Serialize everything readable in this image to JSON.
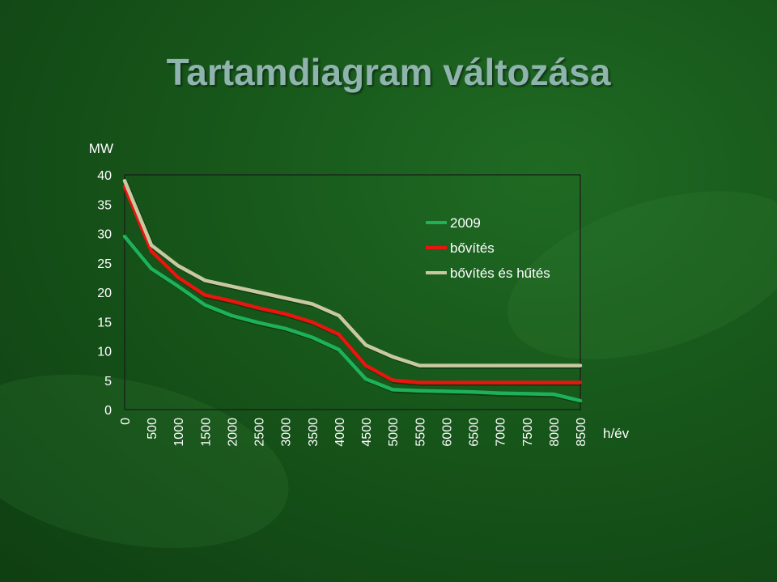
{
  "slide": {
    "title": "Tartamdiagram változása",
    "background_color": "#17561a",
    "title_color": "#8fb3ad"
  },
  "chart_data": {
    "type": "line",
    "title": "",
    "ylabel": "MW",
    "xlabel": "h/év",
    "ylim": [
      0,
      40
    ],
    "xlim": [
      0,
      8500
    ],
    "y_ticks": [
      0,
      5,
      10,
      15,
      20,
      25,
      30,
      35,
      40
    ],
    "x_ticks": [
      0,
      500,
      1000,
      1500,
      2000,
      2500,
      3000,
      3500,
      4000,
      4500,
      5000,
      5500,
      6000,
      6500,
      7000,
      7500,
      8000,
      8500
    ],
    "grid": false,
    "legend_position": "top-right",
    "x": [
      0,
      500,
      1000,
      1500,
      2000,
      2500,
      3000,
      3500,
      4000,
      4500,
      5000,
      5500,
      6000,
      6500,
      7000,
      7500,
      8000,
      8500
    ],
    "series": [
      {
        "name": "2009",
        "color": "#1db25a",
        "values": [
          29.5,
          24,
          21,
          17.8,
          16,
          14.8,
          13.8,
          12.3,
          10.2,
          5.2,
          3.4,
          3.2,
          3.1,
          3.0,
          2.8,
          2.7,
          2.6,
          1.5
        ]
      },
      {
        "name": "bővítés",
        "color": "#e8160f",
        "values": [
          38,
          27,
          22.5,
          19.5,
          18.5,
          17.3,
          16.3,
          14.9,
          12.8,
          7.5,
          5,
          4.6,
          4.6,
          4.6,
          4.6,
          4.6,
          4.6,
          4.6
        ]
      },
      {
        "name": "bővítés és hűtés",
        "color": "#c8c9a0",
        "values": [
          39,
          28,
          24.5,
          22,
          21,
          20,
          19,
          18,
          16,
          11,
          9,
          7.5,
          7.5,
          7.5,
          7.5,
          7.5,
          7.5,
          7.5
        ]
      }
    ]
  }
}
